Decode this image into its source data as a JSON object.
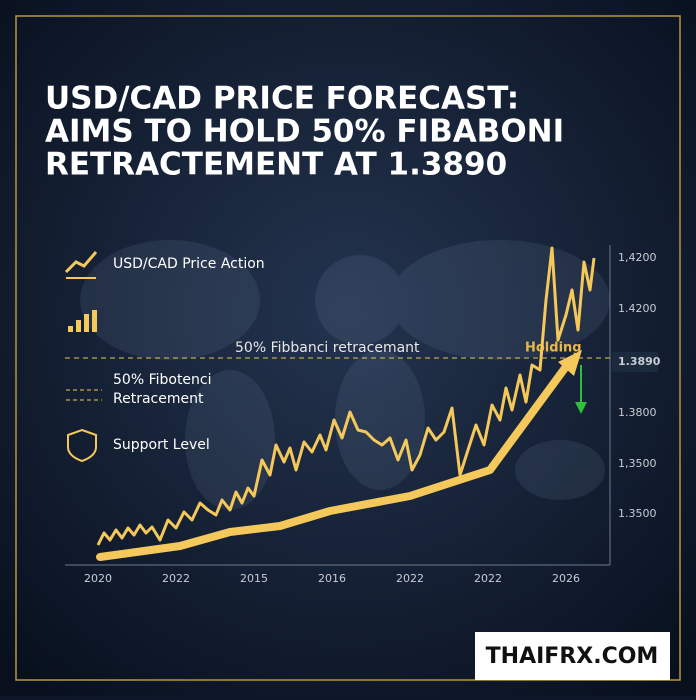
{
  "header": {
    "title_lines": [
      "USD/CAD PRICE FORECAST:",
      "AIMS TO HOLD 50% FIBABONI",
      "RETRACTEMENT AT 1.3890"
    ]
  },
  "legend": {
    "items": [
      "USD/CAD Price Action",
      "50% Fibotenci",
      "Retracement",
      "Support Level"
    ]
  },
  "chart": {
    "fib_label": "50% Fibbanci retracemant",
    "holding_label": "Holding",
    "y_labels": [
      "1,4200",
      "1.4200",
      "1.3890",
      "1.3800",
      "1,3500",
      "1.3500"
    ],
    "x_labels": [
      "2020",
      "2022",
      "2015",
      "2016",
      "2022",
      "2022",
      "2026"
    ]
  },
  "brand": "THAIFRX.COM"
}
